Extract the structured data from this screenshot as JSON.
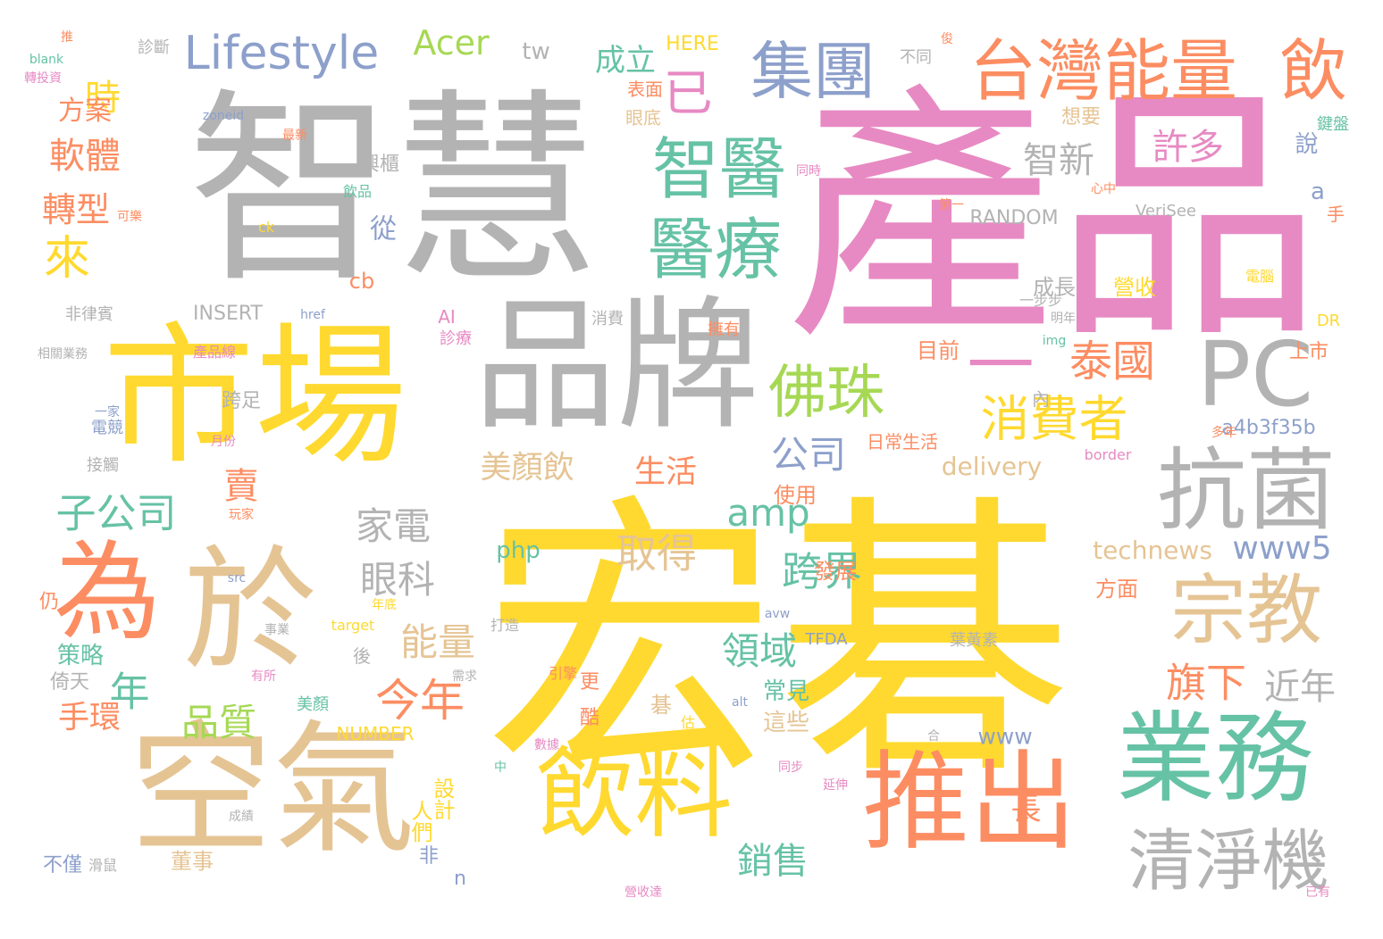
{
  "colors": {
    "yellow": "#ffd92f",
    "pink": "#e78ac3",
    "gray": "#b3b3b3",
    "tan": "#e5c494",
    "green": "#66c2a5",
    "orange": "#fc8d62",
    "blue": "#8da0cb",
    "lime": "#a6d854"
  },
  "words": [
    {
      "text": "宏碁",
      "color": "yellow"
    },
    {
      "text": "產品",
      "color": "pink"
    },
    {
      "text": "智慧",
      "color": "gray"
    },
    {
      "text": "市場",
      "color": "yellow"
    },
    {
      "text": "品牌",
      "color": "gray"
    },
    {
      "text": "空氣",
      "color": "tan"
    },
    {
      "text": "於",
      "color": "tan"
    },
    {
      "text": "為",
      "color": "orange"
    },
    {
      "text": "推出",
      "color": "orange"
    },
    {
      "text": "飲料",
      "color": "yellow"
    },
    {
      "text": "業務",
      "color": "green"
    },
    {
      "text": "抗菌",
      "color": "gray"
    },
    {
      "text": "PC",
      "color": "gray"
    },
    {
      "text": "宗教",
      "color": "tan"
    },
    {
      "text": "清淨機",
      "color": "gray"
    },
    {
      "text": "台灣能量",
      "color": "orange"
    },
    {
      "text": "飲",
      "color": "orange"
    },
    {
      "text": "集團",
      "color": "blue"
    },
    {
      "text": "Lifestyle",
      "color": "blue"
    },
    {
      "text": "Acer",
      "color": "lime"
    },
    {
      "text": "智醫",
      "color": "green"
    },
    {
      "text": "醫療",
      "color": "green"
    },
    {
      "text": "佛珠",
      "color": "lime"
    },
    {
      "text": "消費者",
      "color": "yellow"
    },
    {
      "text": "泰國",
      "color": "orange"
    },
    {
      "text": "一",
      "color": "pink"
    },
    {
      "text": "已",
      "color": "pink"
    },
    {
      "text": "智新",
      "color": "gray"
    },
    {
      "text": "許多",
      "color": "pink"
    },
    {
      "text": "子公司",
      "color": "green"
    },
    {
      "text": "來",
      "color": "yellow"
    },
    {
      "text": "時",
      "color": "yellow"
    },
    {
      "text": "方案",
      "color": "orange"
    },
    {
      "text": "軟體",
      "color": "orange"
    },
    {
      "text": "轉型",
      "color": "orange"
    },
    {
      "text": "成立",
      "color": "green"
    },
    {
      "text": "tw",
      "color": "gray"
    },
    {
      "text": "HERE",
      "color": "yellow"
    },
    {
      "text": "年",
      "color": "green"
    },
    {
      "text": "家電",
      "color": "gray"
    },
    {
      "text": "眼科",
      "color": "gray"
    },
    {
      "text": "能量",
      "color": "tan"
    },
    {
      "text": "今年",
      "color": "orange"
    },
    {
      "text": "品質",
      "color": "lime"
    },
    {
      "text": "手環",
      "color": "orange"
    },
    {
      "text": "賣",
      "color": "orange"
    },
    {
      "text": "取得",
      "color": "tan"
    },
    {
      "text": "跨界",
      "color": "green"
    },
    {
      "text": "領域",
      "color": "green"
    },
    {
      "text": "公司",
      "color": "blue"
    },
    {
      "text": "amp",
      "color": "green"
    },
    {
      "text": "銷售",
      "color": "green"
    },
    {
      "text": "生活",
      "color": "orange"
    },
    {
      "text": "美顏飲",
      "color": "tan"
    },
    {
      "text": "旗下",
      "color": "orange"
    },
    {
      "text": "近年",
      "color": "gray"
    },
    {
      "text": "www5",
      "color": "blue"
    },
    {
      "text": "technews",
      "color": "tan"
    },
    {
      "text": "delivery",
      "color": "tan"
    },
    {
      "text": "a4b3f35b",
      "color": "blue"
    },
    {
      "text": "www",
      "color": "blue"
    },
    {
      "text": "php",
      "color": "green"
    },
    {
      "text": "RANDOM",
      "color": "gray"
    },
    {
      "text": "VeriSee",
      "color": "gray"
    },
    {
      "text": "INSERT",
      "color": "gray"
    },
    {
      "text": "NUMBER",
      "color": "yellow"
    },
    {
      "text": "TFDA",
      "color": "blue"
    },
    {
      "text": "成長",
      "color": "gray"
    },
    {
      "text": "營收",
      "color": "yellow"
    },
    {
      "text": "目前",
      "color": "orange"
    },
    {
      "text": "說",
      "color": "blue"
    },
    {
      "text": "從",
      "color": "blue"
    },
    {
      "text": "a",
      "color": "blue"
    },
    {
      "text": "上市",
      "color": "orange"
    },
    {
      "text": "常見",
      "color": "green"
    },
    {
      "text": "這些",
      "color": "tan"
    },
    {
      "text": "方面",
      "color": "orange"
    },
    {
      "text": "發展",
      "color": "orange"
    },
    {
      "text": "使用",
      "color": "orange"
    },
    {
      "text": "設計",
      "color": "yellow"
    },
    {
      "text": "人們",
      "color": "yellow"
    },
    {
      "text": "董事",
      "color": "tan"
    },
    {
      "text": "策略",
      "color": "green"
    },
    {
      "text": "倚天",
      "color": "gray"
    },
    {
      "text": "不僅",
      "color": "blue"
    },
    {
      "text": "長",
      "color": "orange"
    },
    {
      "text": "非",
      "color": "blue"
    },
    {
      "text": "n",
      "color": "blue"
    },
    {
      "text": "cb",
      "color": "orange"
    },
    {
      "text": "AI",
      "color": "pink"
    },
    {
      "text": "更",
      "color": "orange"
    },
    {
      "text": "酷",
      "color": "orange"
    },
    {
      "text": "碁",
      "color": "tan"
    },
    {
      "text": "後",
      "color": "gray"
    },
    {
      "text": "跨足",
      "color": "gray"
    },
    {
      "text": "興櫃",
      "color": "gray"
    },
    {
      "text": "想要",
      "color": "tan"
    },
    {
      "text": "眼底",
      "color": "tan"
    },
    {
      "text": "表面",
      "color": "orange"
    },
    {
      "text": "診斷",
      "color": "gray"
    },
    {
      "text": "不同",
      "color": "gray"
    },
    {
      "text": "日常生活",
      "color": "orange"
    },
    {
      "text": "內",
      "color": "gray"
    },
    {
      "text": "仍",
      "color": "orange"
    },
    {
      "text": "手",
      "color": "orange"
    },
    {
      "text": "鍵盤",
      "color": "green"
    },
    {
      "text": "DR",
      "color": "yellow"
    },
    {
      "text": "電競",
      "color": "blue"
    },
    {
      "text": "一家",
      "color": "blue"
    },
    {
      "text": "接觸",
      "color": "gray"
    },
    {
      "text": "非律賓",
      "color": "gray"
    },
    {
      "text": "消費",
      "color": "gray"
    },
    {
      "text": "診療",
      "color": "pink"
    },
    {
      "text": "美顏",
      "color": "green"
    },
    {
      "text": "葉黃素",
      "color": "gray"
    },
    {
      "text": "電腦",
      "color": "yellow"
    },
    {
      "text": "擁有",
      "color": "orange"
    },
    {
      "text": "一步步",
      "color": "gray"
    },
    {
      "text": "飲品",
      "color": "green"
    },
    {
      "text": "border",
      "color": "pink"
    },
    {
      "text": "target",
      "color": "yellow"
    },
    {
      "text": "href",
      "color": "blue"
    },
    {
      "text": "src",
      "color": "blue"
    },
    {
      "text": "alt",
      "color": "blue"
    },
    {
      "text": "ck",
      "color": "yellow"
    },
    {
      "text": "img",
      "color": "green"
    },
    {
      "text": "blank",
      "color": "green"
    },
    {
      "text": "avw",
      "color": "blue"
    },
    {
      "text": "zoneid",
      "color": "blue"
    },
    {
      "text": "產品線",
      "color": "pink"
    },
    {
      "text": "玩家",
      "color": "orange"
    },
    {
      "text": "滑鼠",
      "color": "gray"
    },
    {
      "text": "中",
      "color": "green"
    },
    {
      "text": "打造",
      "color": "gray"
    },
    {
      "text": "事業",
      "color": "gray"
    },
    {
      "text": "需求",
      "color": "gray"
    },
    {
      "text": "數據",
      "color": "pink"
    },
    {
      "text": "同步",
      "color": "pink"
    },
    {
      "text": "延伸",
      "color": "pink"
    },
    {
      "text": "第一",
      "color": "orange"
    },
    {
      "text": "營收達",
      "color": "pink"
    },
    {
      "text": "已有",
      "color": "pink"
    },
    {
      "text": "合",
      "color": "gray"
    },
    {
      "text": "估",
      "color": "yellow"
    },
    {
      "text": "引擎",
      "color": "orange"
    },
    {
      "text": "推",
      "color": "orange"
    },
    {
      "text": "轉投資",
      "color": "pink"
    },
    {
      "text": "相關業務",
      "color": "gray"
    },
    {
      "text": "年底",
      "color": "yellow"
    },
    {
      "text": "月份",
      "color": "pink"
    },
    {
      "text": "有所",
      "color": "pink"
    },
    {
      "text": "心中",
      "color": "orange"
    },
    {
      "text": "同時",
      "color": "pink"
    },
    {
      "text": "多年",
      "color": "orange"
    },
    {
      "text": "明年",
      "color": "gray"
    },
    {
      "text": "成績",
      "color": "gray"
    },
    {
      "text": "最新",
      "color": "orange"
    },
    {
      "text": "可樂",
      "color": "orange"
    },
    {
      "text": "俊",
      "color": "orange"
    }
  ]
}
